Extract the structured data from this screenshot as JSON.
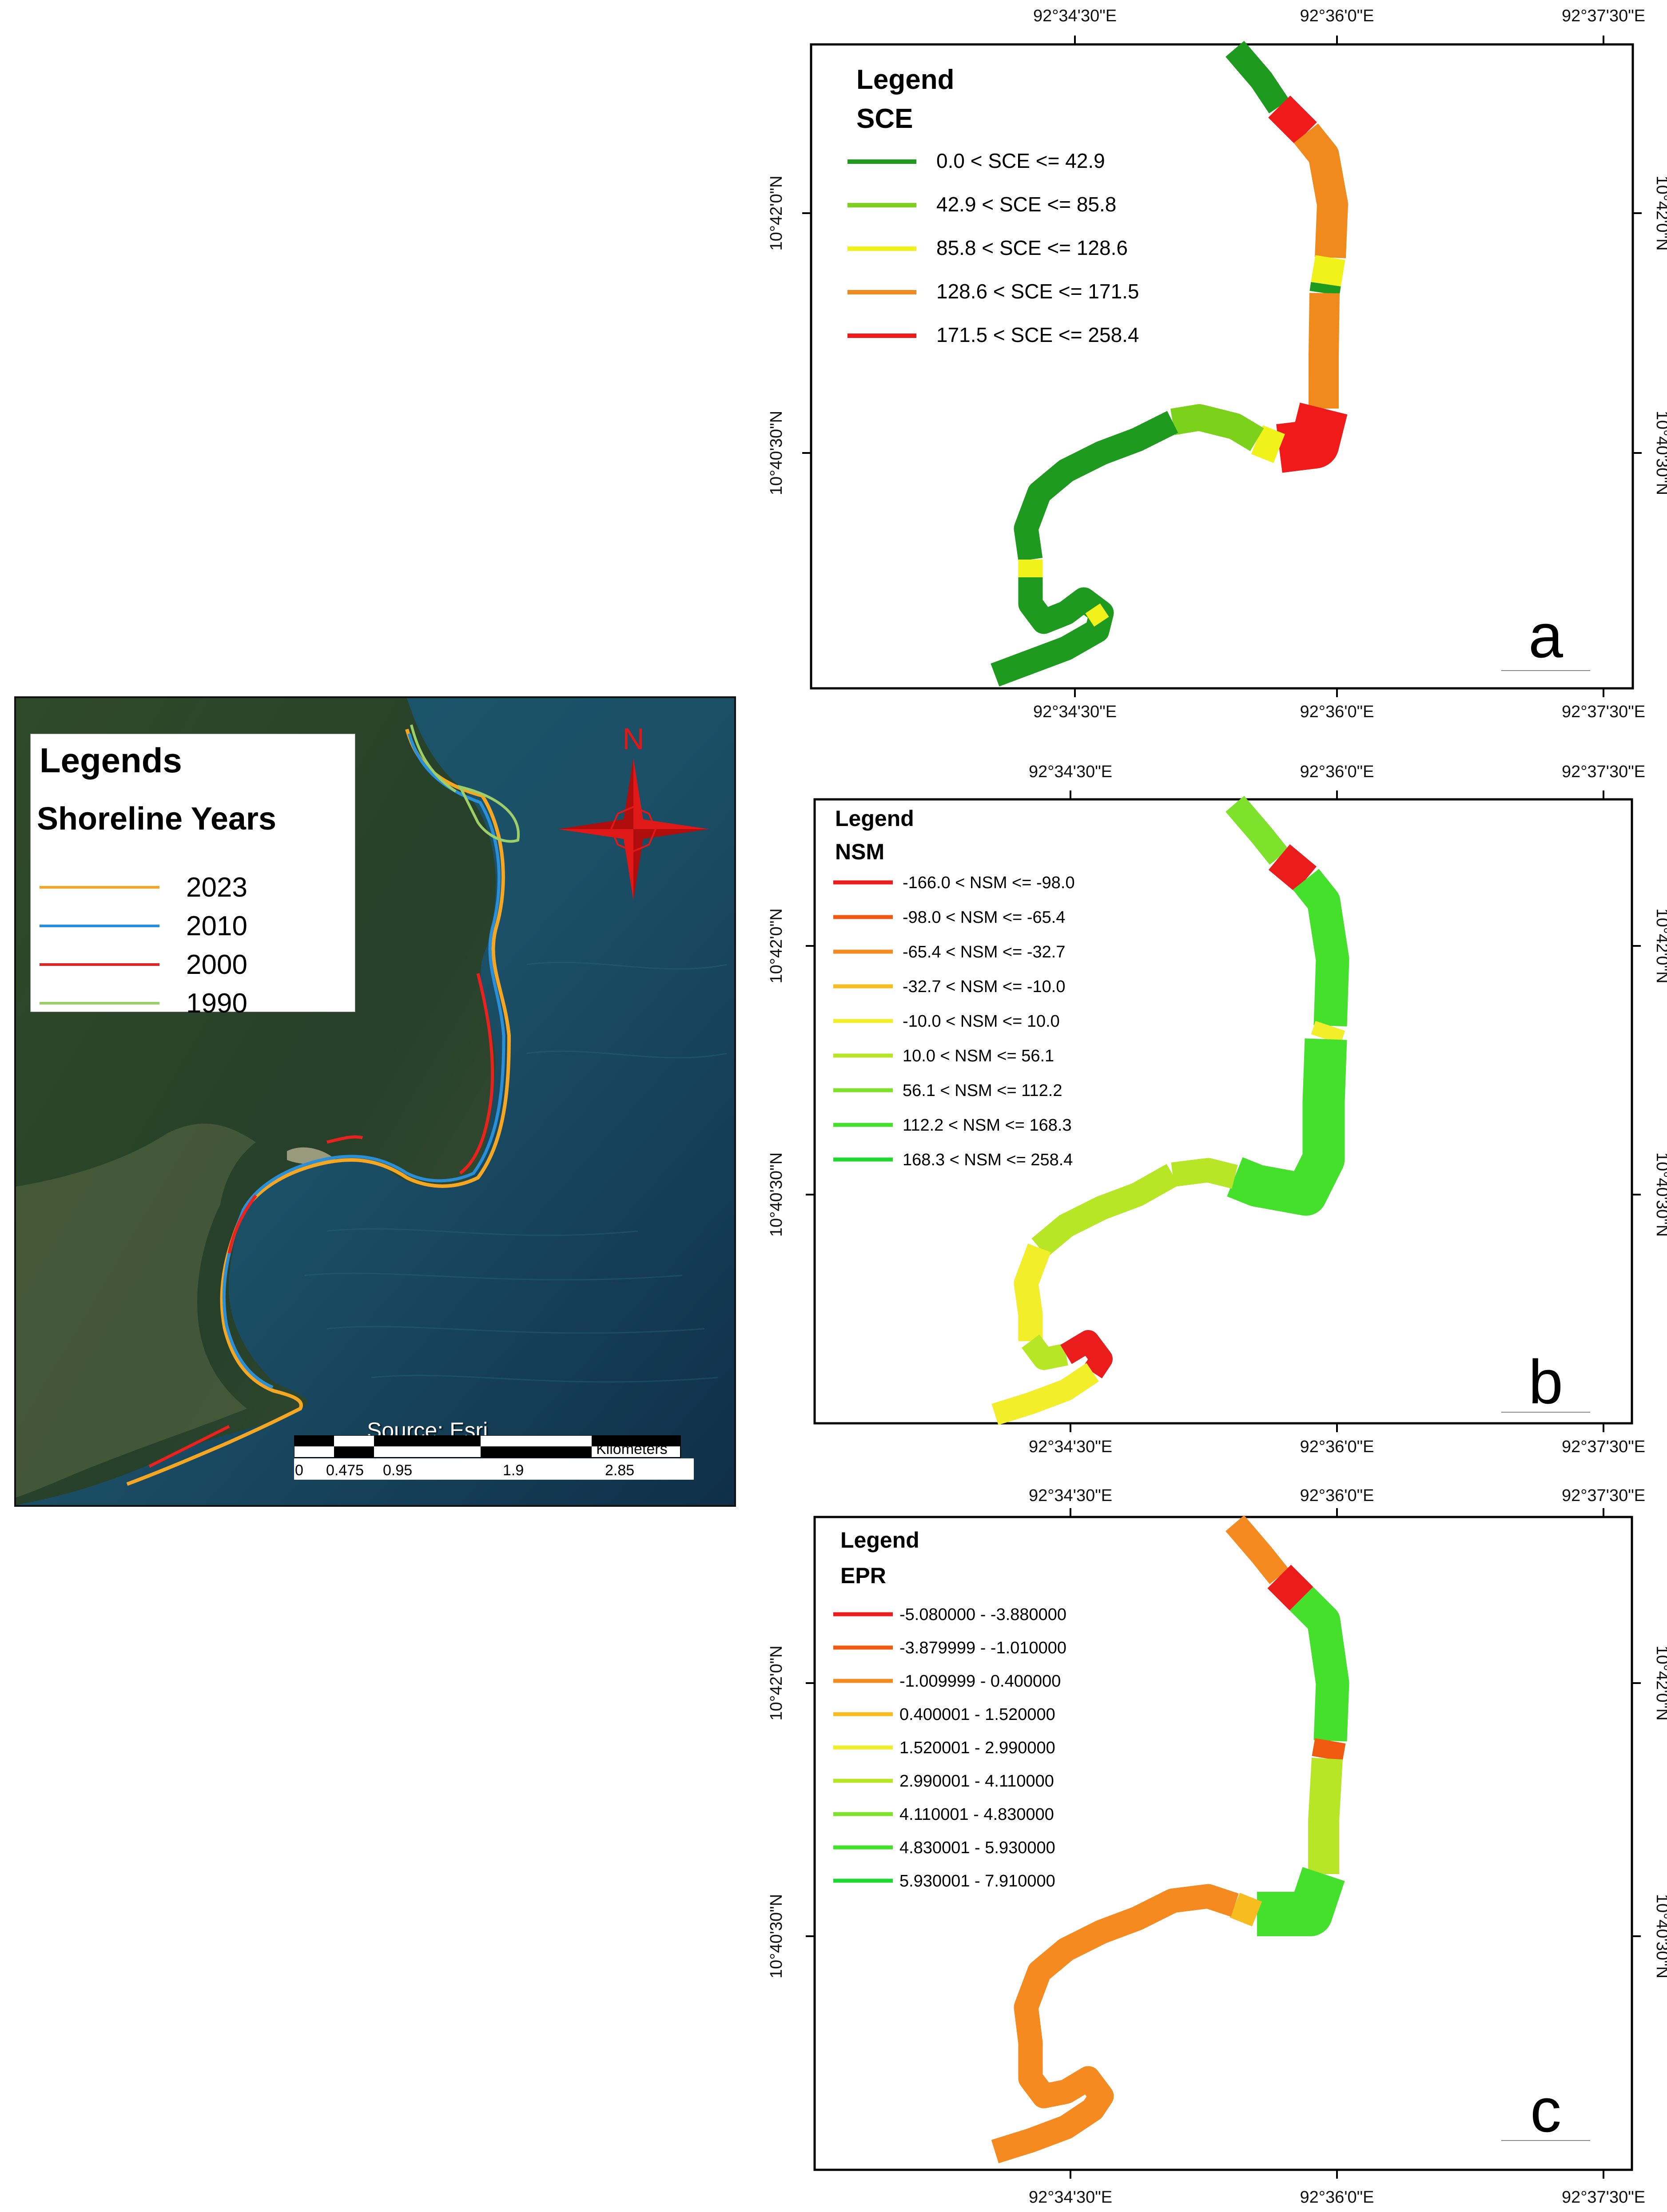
{
  "satellite_map": {
    "legend_title": "Legends",
    "legend_subtitle": "Shoreline Years",
    "years": [
      {
        "label": "2023",
        "color": "#f5a623"
      },
      {
        "label": "2010",
        "color": "#2a8fd6"
      },
      {
        "label": "2000",
        "color": "#e8231f"
      },
      {
        "label": "1990",
        "color": "#9ccf6a"
      }
    ],
    "north_label": "N",
    "source_text": "Source: Esri,",
    "scale": {
      "unit": "Kilometers",
      "ticks": [
        "0",
        "0.475",
        "0.95",
        "1.9",
        "2.85"
      ]
    }
  },
  "panel_a": {
    "letter": "a",
    "legend_title": "Legend",
    "field": "SCE",
    "classes": [
      {
        "label": "0.0 < SCE <= 42.9",
        "color": "#1e9a1e"
      },
      {
        "label": "42.9 < SCE <= 85.8",
        "color": "#7cd11a"
      },
      {
        "label": "85.8 < SCE <= 128.6",
        "color": "#f2f21b"
      },
      {
        "label": "128.6 < SCE <= 171.5",
        "color": "#f08a1c"
      },
      {
        "label": "171.5 < SCE <= 258.4",
        "color": "#f01a1a"
      }
    ],
    "top_ticks": [
      "92°34'30\"E",
      "92°36'0\"E",
      "92°37'30\"E"
    ],
    "bottom_ticks": [
      "92°34'30\"E",
      "92°36'0\"E",
      "92°37'30\"E"
    ],
    "lat_ticks": [
      "10°42'0\"N",
      "10°40'30\"N"
    ]
  },
  "panel_b": {
    "letter": "b",
    "legend_title": "Legend",
    "field": "NSM",
    "classes": [
      {
        "label": "-166.0 < NSM <= -98.0",
        "color": "#ea1c1c"
      },
      {
        "label": "-98.0 < NSM <= -65.4",
        "color": "#f05a10"
      },
      {
        "label": "-65.4 < NSM <= -32.7",
        "color": "#f58a20"
      },
      {
        "label": "-32.7 < NSM <= -10.0",
        "color": "#f7bc1f"
      },
      {
        "label": "-10.0 < NSM <= 10.0",
        "color": "#f2ee2a"
      },
      {
        "label": "10.0 < NSM <= 56.1",
        "color": "#b6e626"
      },
      {
        "label": "56.1 < NSM <= 112.2",
        "color": "#7ee12c"
      },
      {
        "label": "112.2 < NSM <= 168.3",
        "color": "#44e02c"
      },
      {
        "label": "168.3 < NSM <= 258.4",
        "color": "#1fd832"
      }
    ],
    "top_ticks": [
      "92°34'30\"E",
      "92°36'0\"E",
      "92°37'30\"E"
    ],
    "bottom_ticks": [
      "92°34'30\"E",
      "92°36'0\"E",
      "92°37'30\"E"
    ],
    "lat_ticks": [
      "10°42'0\"N",
      "10°40'30\"N"
    ]
  },
  "panel_c": {
    "letter": "c",
    "legend_title": "Legend",
    "field": "EPR",
    "classes": [
      {
        "label": "-5.080000 - -3.880000",
        "color": "#ea1c1c"
      },
      {
        "label": "-3.879999 - -1.010000",
        "color": "#f05a10"
      },
      {
        "label": "-1.009999 - 0.400000",
        "color": "#f58a20"
      },
      {
        "label": "0.400001 - 1.520000",
        "color": "#f7bc1f"
      },
      {
        "label": "1.520001 - 2.990000",
        "color": "#f2ee2a"
      },
      {
        "label": "2.990001 - 4.110000",
        "color": "#b6e626"
      },
      {
        "label": "4.110001 - 4.830000",
        "color": "#7ee12c"
      },
      {
        "label": "4.830001 - 5.930000",
        "color": "#44e02c"
      },
      {
        "label": "5.930001 - 7.910000",
        "color": "#1fd832"
      }
    ],
    "top_ticks": [
      "92°34'30\"E",
      "92°36'0\"E",
      "92°37'30\"E"
    ],
    "bottom_ticks": [
      "92°34'30\"E",
      "92°36'0\"E",
      "92°37'30\"E"
    ],
    "lat_ticks": [
      "10°42'0\"N",
      "10°40'30\"N"
    ]
  }
}
